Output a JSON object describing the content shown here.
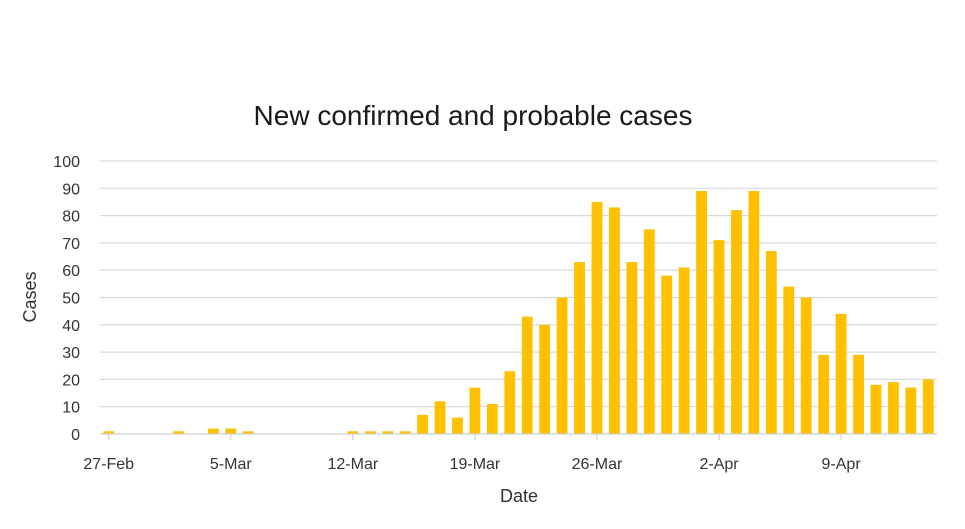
{
  "chart_data": {
    "type": "bar",
    "title": "New confirmed and probable cases",
    "xlabel": "Date",
    "ylabel": "Cases",
    "ylim": [
      0,
      100
    ],
    "yticks": [
      0,
      10,
      20,
      30,
      40,
      50,
      60,
      70,
      80,
      90,
      100
    ],
    "grid": true,
    "legend": "none",
    "bar_color": "#FFC000",
    "categories": [
      "27-Feb",
      "28-Feb",
      "29-Feb",
      "1-Mar",
      "2-Mar",
      "3-Mar",
      "4-Mar",
      "5-Mar",
      "6-Mar",
      "7-Mar",
      "8-Mar",
      "9-Mar",
      "10-Mar",
      "11-Mar",
      "12-Mar",
      "13-Mar",
      "14-Mar",
      "15-Mar",
      "16-Mar",
      "17-Mar",
      "18-Mar",
      "19-Mar",
      "20-Mar",
      "21-Mar",
      "22-Mar",
      "23-Mar",
      "24-Mar",
      "25-Mar",
      "26-Mar",
      "27-Mar",
      "28-Mar",
      "29-Mar",
      "30-Mar",
      "31-Mar",
      "1-Apr",
      "2-Apr",
      "3-Apr",
      "4-Apr",
      "5-Apr",
      "6-Apr",
      "7-Apr",
      "8-Apr",
      "9-Apr",
      "10-Apr",
      "11-Apr",
      "12-Apr",
      "13-Apr",
      "14-Apr"
    ],
    "values": [
      1,
      0,
      0,
      0,
      1,
      0,
      2,
      2,
      1,
      0,
      0,
      0,
      0,
      0,
      1,
      1,
      1,
      1,
      7,
      12,
      6,
      17,
      11,
      23,
      43,
      40,
      50,
      63,
      85,
      83,
      63,
      75,
      58,
      61,
      89,
      71,
      82,
      89,
      67,
      54,
      50,
      29,
      44,
      29,
      18,
      19,
      17,
      20
    ],
    "xtick_labels": [
      "27-Feb",
      "5-Mar",
      "12-Mar",
      "19-Mar",
      "26-Mar",
      "2-Apr",
      "9-Apr"
    ]
  }
}
